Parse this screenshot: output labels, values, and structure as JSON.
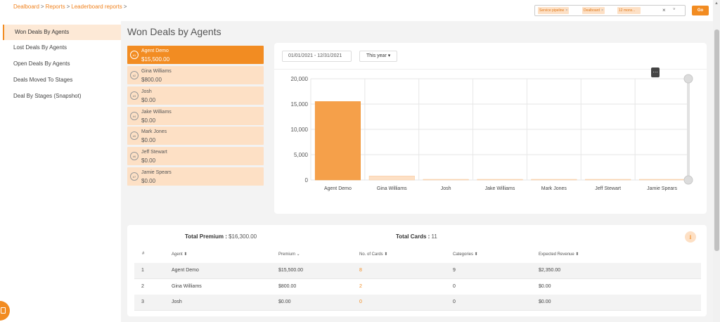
{
  "breadcrumb": [
    "Dealboard",
    "Reports",
    "Leaderboard reports"
  ],
  "breadcrumb_sep": ">",
  "filters": {
    "chips": [
      "Service pipeline",
      "Dealboard",
      "12 mons..."
    ],
    "chip_remove": "×",
    "clear": "×",
    "caret": "˅"
  },
  "go_label": "Go",
  "sidebar": {
    "items": [
      {
        "label": "Won Deals By Agents",
        "active": true
      },
      {
        "label": "Lost Deals By Agents",
        "active": false
      },
      {
        "label": "Open Deals By Agents",
        "active": false
      },
      {
        "label": "Deals Moved To Stages",
        "active": false
      },
      {
        "label": "Deal By Stages (Snapshot)",
        "active": false
      }
    ]
  },
  "page_title": "Won Deals by Agents",
  "agents": [
    {
      "rank": "#1",
      "name": "Agent Demo",
      "value": "$15,500.00",
      "active": true
    },
    {
      "rank": "#2",
      "name": "Gina Williams",
      "value": "$800.00",
      "active": false
    },
    {
      "rank": "#3",
      "name": "Josh",
      "value": "$0.00",
      "active": false
    },
    {
      "rank": "#4",
      "name": "Jake Williams",
      "value": "$0.00",
      "active": false
    },
    {
      "rank": "#5",
      "name": "Mark Jones",
      "value": "$0.00",
      "active": false
    },
    {
      "rank": "#6",
      "name": "Jeff Stewart",
      "value": "$0.00",
      "active": false
    },
    {
      "rank": "#7",
      "name": "Jamie Spears",
      "value": "$0.00",
      "active": false
    }
  ],
  "chart_controls": {
    "date_range": "01/01/2021 - 12/31/2021",
    "period": "This year ▾",
    "menu_glyph": "…"
  },
  "chart_data": {
    "type": "bar",
    "categories": [
      "Agent Demo",
      "Gina Williams",
      "Josh",
      "Jake Williams",
      "Mark Jones",
      "Jeff Stewart",
      "Jamie Spears"
    ],
    "values": [
      15500,
      800,
      0,
      0,
      0,
      0,
      0
    ],
    "ylim": [
      0,
      20000
    ],
    "yticks": [
      "0",
      "5,000",
      "10,000",
      "15,000",
      "20,000"
    ],
    "grid": true,
    "colors": {
      "highlight": "#f5a04a",
      "normal": "#fde0c5"
    }
  },
  "summary": {
    "premium_label": "Total Premium :",
    "premium_value": "$16,300.00",
    "cards_label": "Total Cards :",
    "cards_value": "11"
  },
  "table": {
    "headers": [
      "#",
      "Agent ⬍",
      "Premium ⌄",
      "No. of Cards ⬍",
      "Categories ⬍",
      "Expected Revenue ⬍"
    ],
    "rows": [
      [
        "1",
        "Agent Demo",
        "$15,500.00",
        "8",
        "9",
        "$2,350.00"
      ],
      [
        "2",
        "Gina Williams",
        "$800.00",
        "2",
        "0",
        "$0.00"
      ],
      [
        "3",
        "Josh",
        "$0.00",
        "0",
        "0",
        "$0.00"
      ]
    ]
  },
  "colors": {
    "accent": "#f28c22",
    "accent_light": "#fde0c5",
    "sidebar_active": "#fde9d6"
  }
}
